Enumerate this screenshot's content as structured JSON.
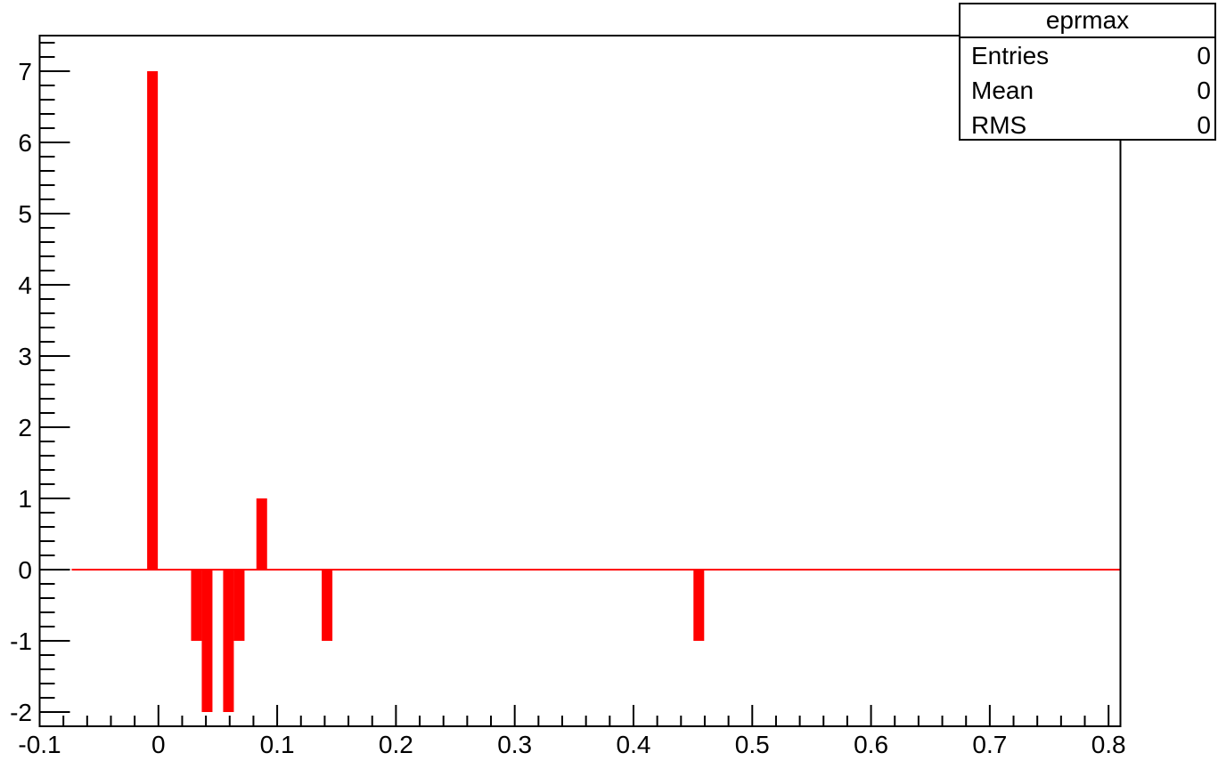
{
  "chart_data": {
    "type": "bar",
    "title": "",
    "xlabel": "",
    "ylabel": "",
    "xlim": [
      -0.1,
      0.81
    ],
    "ylim": [
      -2.2,
      7.5
    ],
    "x_ticks": [
      "-0.1",
      "0",
      "0.1",
      "0.2",
      "0.3",
      "0.4",
      "0.5",
      "0.6",
      "0.7",
      "0.8"
    ],
    "y_ticks": [
      "-2",
      "-1",
      "0",
      "1",
      "2",
      "3",
      "4",
      "5",
      "6",
      "7"
    ],
    "baseline_range": [
      -0.073,
      0.81
    ],
    "bar_width": 0.009,
    "bins": [
      {
        "x": -0.005,
        "value": 7
      },
      {
        "x": 0.032,
        "value": -1
      },
      {
        "x": 0.041,
        "value": -2
      },
      {
        "x": 0.059,
        "value": -2
      },
      {
        "x": 0.068,
        "value": -1
      },
      {
        "x": 0.087,
        "value": 1
      },
      {
        "x": 0.142,
        "value": -1
      },
      {
        "x": 0.455,
        "value": -1
      }
    ],
    "color": "#ff0000",
    "grid": false,
    "stats_box": {
      "title": "eprmax",
      "rows": [
        {
          "label": "Entries",
          "value": "0"
        },
        {
          "label": "Mean",
          "value": "0"
        },
        {
          "label": "RMS",
          "value": "0"
        }
      ]
    }
  }
}
